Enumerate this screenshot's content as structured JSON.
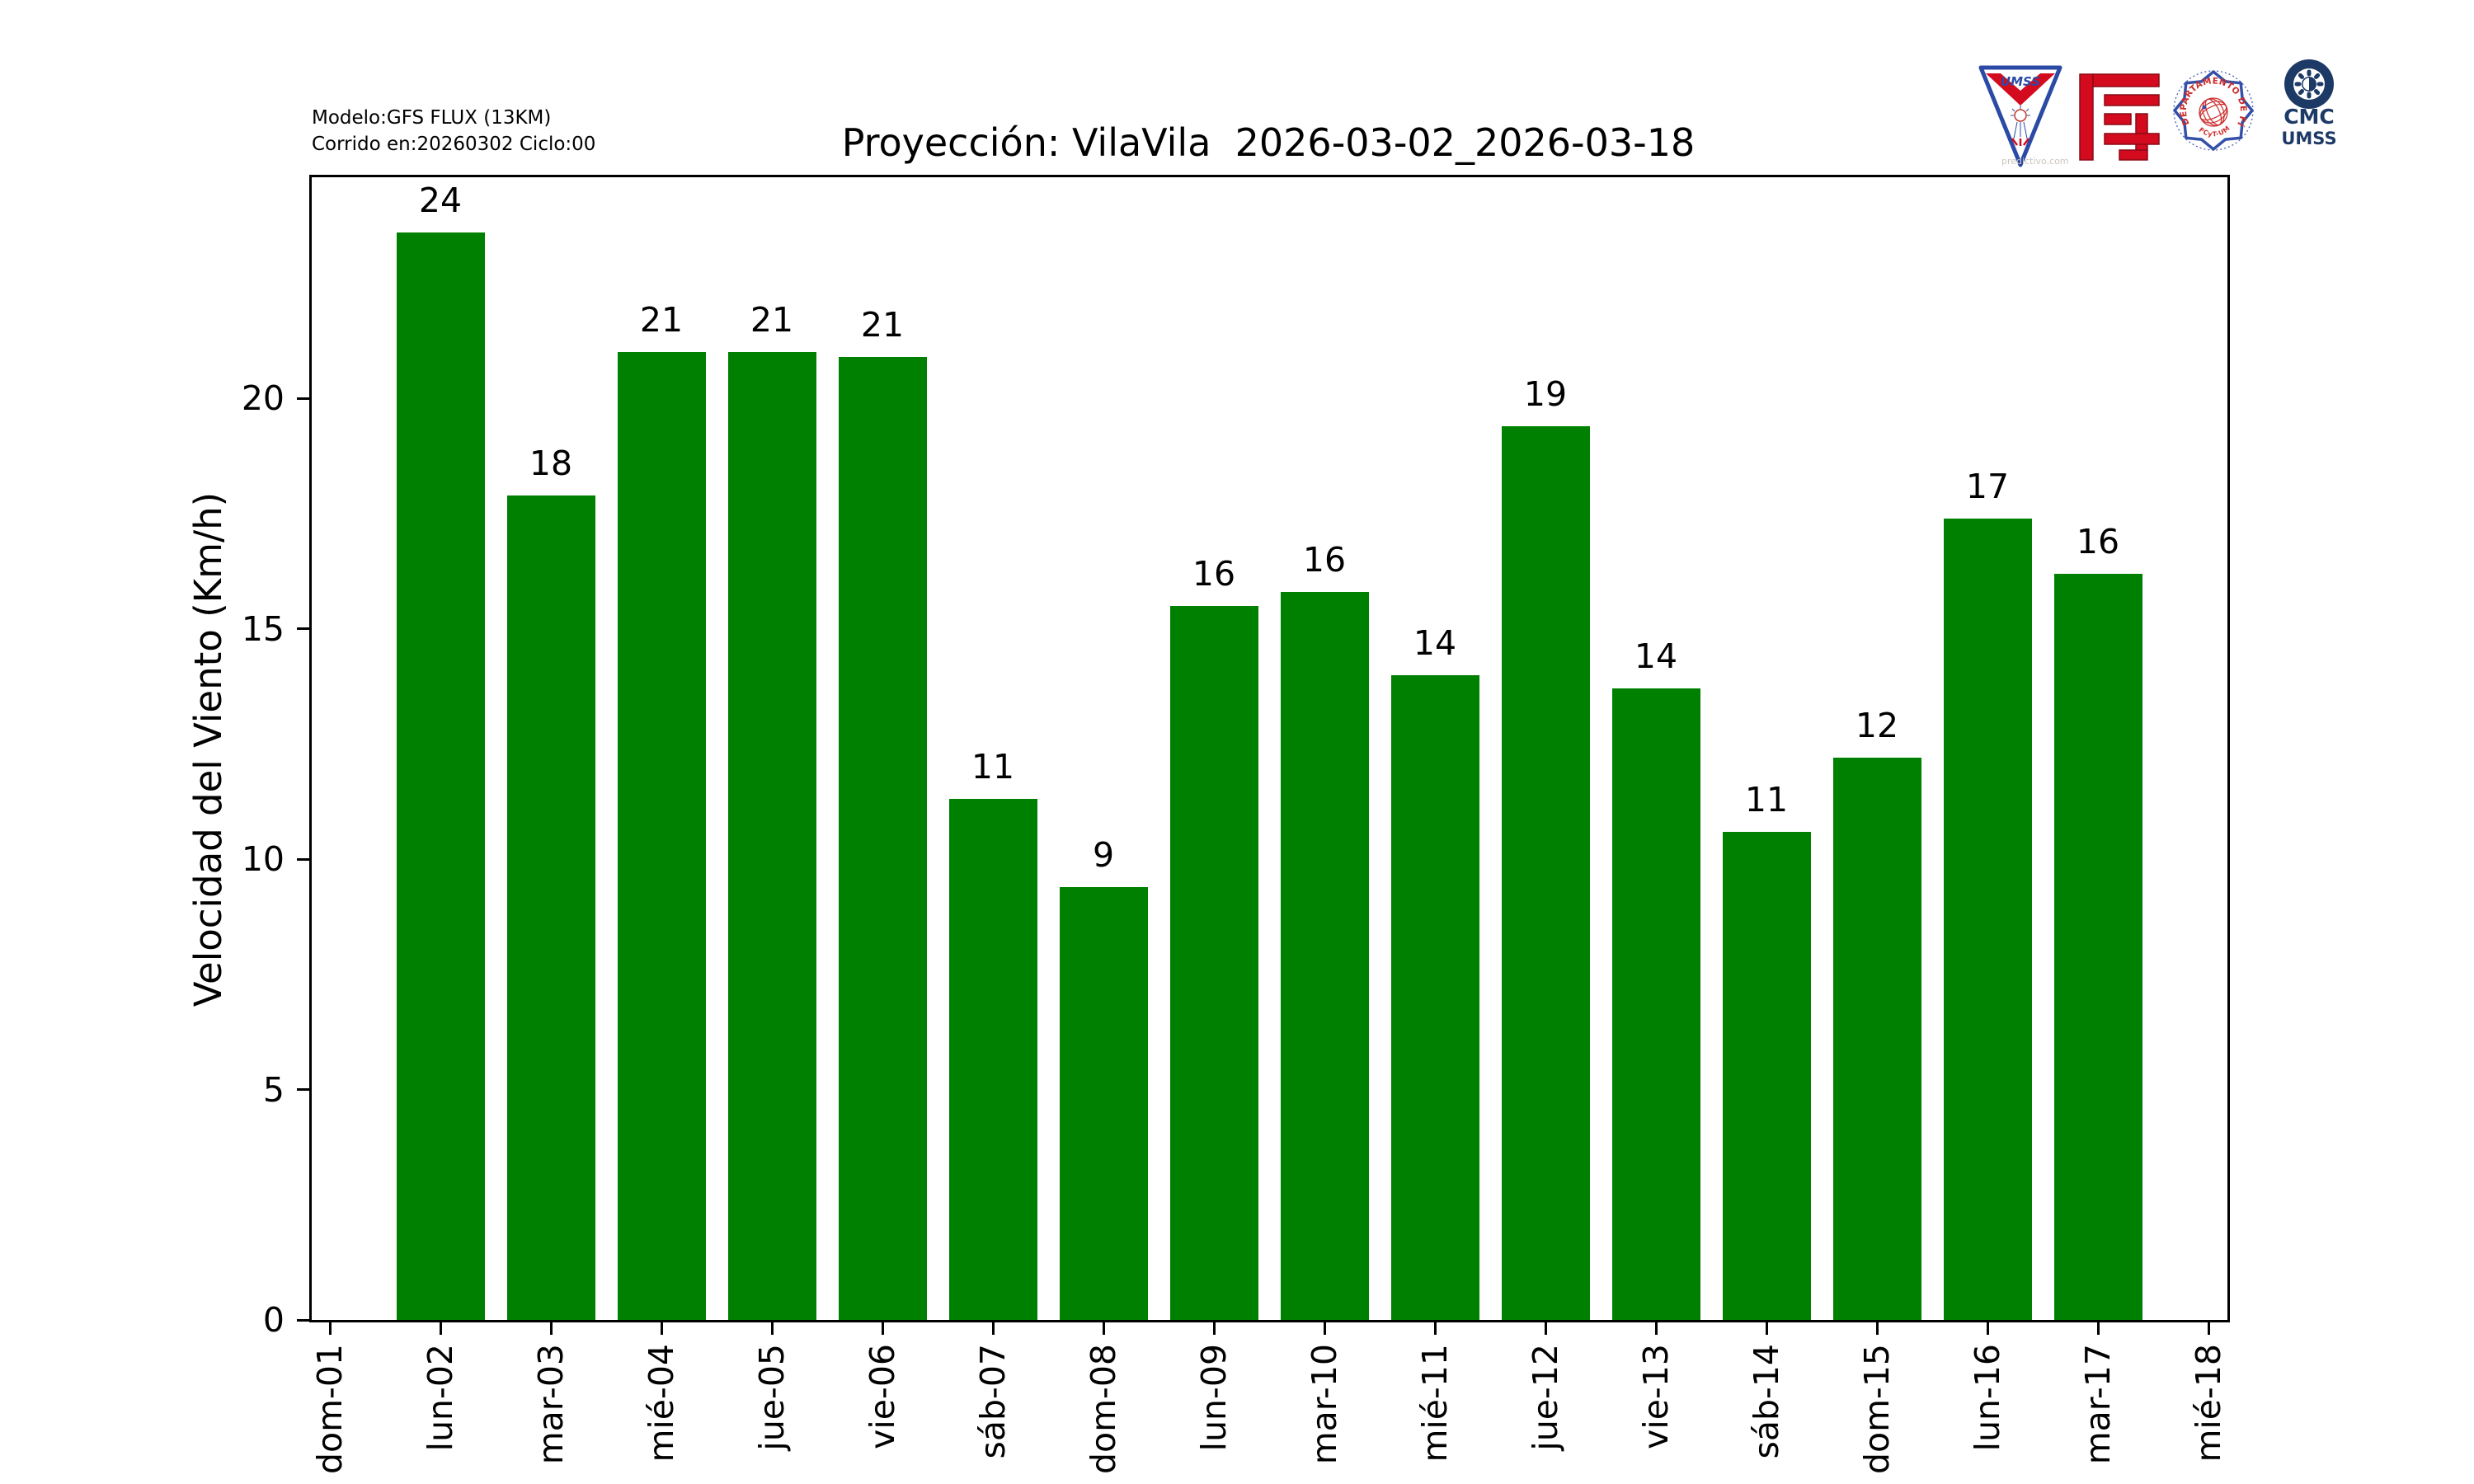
{
  "header": {
    "model_line1": "Modelo:GFS FLUX (13KM)",
    "model_line2": "Corrido en:20260302 Ciclo:00",
    "title": "Proyección: VilaVila  2026-03-02_2026-03-18"
  },
  "logos": {
    "umss_shield": {
      "label": "UMSS",
      "watermark": "predictivo.com"
    },
    "fisica_stamp": {
      "arc_text": "DEPARTAMENTO DE FÍSICA",
      "bottom_text": "FCyT-UMSS"
    },
    "cmc": {
      "line1": "CMC",
      "line2": "UMSS"
    }
  },
  "colors": {
    "bar_green": "#008000",
    "logo_red": "#c8102e",
    "logo_blue": "#2b4aa5",
    "logo_navy": "#1d3a66",
    "stamp_red": "#cc2b2b"
  },
  "chart_data": {
    "type": "bar",
    "title": "Proyección: VilaVila  2026-03-02_2026-03-18",
    "xlabel": "",
    "ylabel": "Velocidad del Viento (Km/h)",
    "categories": [
      "dom-01",
      "lun-02",
      "mar-03",
      "mié-04",
      "jue-05",
      "vie-06",
      "sáb-07",
      "dom-08",
      "lun-09",
      "mar-10",
      "mié-11",
      "jue-12",
      "vie-13",
      "sáb-14",
      "dom-15",
      "lun-16",
      "mar-17",
      "mié-18"
    ],
    "values": [
      0,
      23.6,
      17.9,
      21.0,
      21.0,
      20.9,
      11.3,
      9.4,
      15.5,
      15.8,
      14.0,
      19.4,
      13.7,
      10.6,
      12.2,
      17.4,
      16.2,
      0
    ],
    "bar_labels": [
      "",
      "24",
      "18",
      "21",
      "21",
      "21",
      "11",
      "9",
      "16",
      "16",
      "14",
      "19",
      "14",
      "11",
      "12",
      "17",
      "16",
      ""
    ],
    "yticks": [
      0,
      5,
      10,
      15,
      20
    ],
    "ylim": [
      0,
      24.8
    ],
    "bar_color": "#008000",
    "grid": false,
    "legend": null,
    "x_tick_rotation": 90
  }
}
